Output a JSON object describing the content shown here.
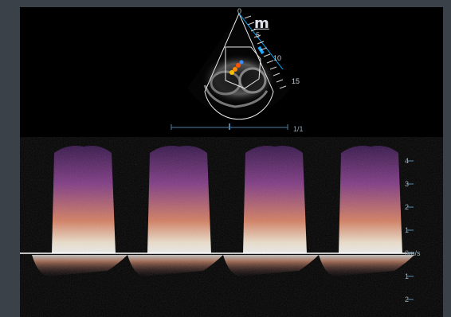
{
  "sector": {
    "depth_marks": [
      "0",
      "5",
      "10",
      "15"
    ],
    "m_marker": "m",
    "frame_counter": "1/1",
    "cine_position": 0.5
  },
  "doppler": {
    "baseline_label": "0m/s",
    "scale_labels": [
      "4",
      "3",
      "2",
      "1",
      "0m/s",
      "1",
      "2"
    ],
    "scale_values": [
      4,
      3,
      2,
      1,
      0,
      -1,
      -2
    ],
    "beat_count": 4
  },
  "colors": {
    "background": "#3a4148",
    "trace_white": "#fff4e6",
    "trace_orange": "#f0a060",
    "trace_purple": "#7a3a8a",
    "scale_blue": "#5a8ca8"
  }
}
